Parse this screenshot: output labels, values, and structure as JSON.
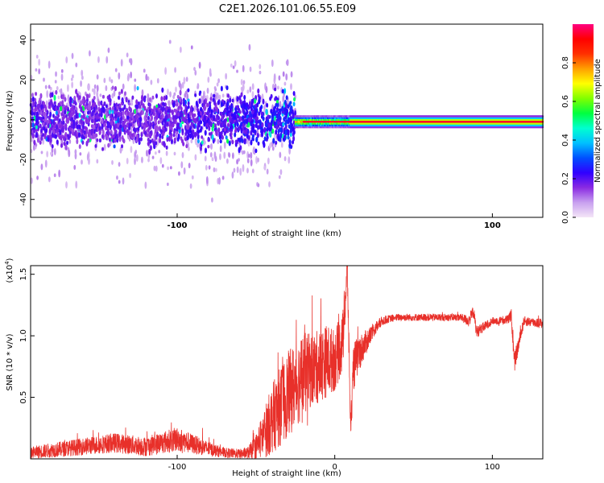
{
  "title": "C2E1.2026.101.06.55.E09",
  "chart_data": [
    {
      "type": "heatmap",
      "name": "spectrogram",
      "xlabel": "Height of straight line (km)",
      "ylabel": "Frequency (Hz)",
      "xlim": [
        -193,
        132
      ],
      "ylim": [
        -49,
        48
      ],
      "xticks": [
        -100,
        0,
        100
      ],
      "xtick_labels": [
        "-100",
        "",
        "100"
      ],
      "yticks": [
        -40,
        -20,
        0,
        20,
        40
      ],
      "ytick_labels": [
        "-40",
        "-20",
        "0",
        "20",
        "40"
      ],
      "colorbar": {
        "label": "Normalized spectral amplitude",
        "range": [
          0,
          1
        ],
        "ticks": [
          0,
          0.2,
          0.4,
          0.6,
          0.8
        ],
        "tick_labels": [
          "0.0",
          "0.2",
          "0.4",
          "0.6",
          "0.8"
        ],
        "colors": [
          "#f4e6f7",
          "#c8a0ef",
          "#8a2be2",
          "#3000ff",
          "#0050ff",
          "#00c0ff",
          "#00ffd0",
          "#00ff40",
          "#80ff00",
          "#ffff00",
          "#ffa000",
          "#ff3000",
          "#ff0000",
          "#ff0080"
        ]
      },
      "signal": {
        "broad_region_x": [
          -193,
          -25
        ],
        "broad_center_freq": 0,
        "broad_spread_hz": 12,
        "narrow_region_x": [
          -25,
          132
        ],
        "narrow_center_freq": -1,
        "narrow_halfwidth_hz": 2.5,
        "peak_amplitude_x": [
          -20,
          132
        ]
      }
    },
    {
      "type": "line",
      "name": "snr",
      "xlabel": "Height of straight line (km)",
      "ylabel": "SNR (10 * v/v)",
      "multiplier_label": "(x10",
      "multiplier_exp": "4",
      "xlim": [
        -193,
        132
      ],
      "ylim": [
        0,
        1.57
      ],
      "xticks": [
        -100,
        0,
        100
      ],
      "xtick_labels": [
        "-100",
        "0",
        "100"
      ],
      "yticks": [
        0.5,
        1.0,
        1.5
      ],
      "ytick_labels": [
        "0.5",
        "1.0",
        "1.5"
      ],
      "color": "#e8302a",
      "x": [
        -193,
        -180,
        -160,
        -140,
        -120,
        -100,
        -90,
        -80,
        -70,
        -60,
        -55,
        -50,
        -45,
        -40,
        -35,
        -30,
        -25,
        -20,
        -15,
        -10,
        -5,
        0,
        5,
        8,
        10,
        12,
        15,
        20,
        25,
        30,
        35,
        40,
        50,
        60,
        70,
        80,
        85,
        88,
        90,
        100,
        110,
        112,
        114,
        120,
        132
      ],
      "y": [
        0.05,
        0.07,
        0.1,
        0.13,
        0.1,
        0.16,
        0.12,
        0.08,
        0.05,
        0.04,
        0.05,
        0.1,
        0.2,
        0.32,
        0.42,
        0.52,
        0.6,
        0.68,
        0.72,
        0.75,
        0.8,
        0.8,
        0.95,
        1.55,
        0.25,
        0.75,
        0.85,
        0.95,
        1.05,
        1.12,
        1.14,
        1.15,
        1.15,
        1.15,
        1.15,
        1.15,
        1.12,
        1.2,
        1.03,
        1.12,
        1.13,
        1.17,
        0.78,
        1.12,
        1.1
      ],
      "noise_amplitude": [
        0.05,
        0.06,
        0.07,
        0.08,
        0.08,
        0.1,
        0.08,
        0.06,
        0.04,
        0.04,
        0.05,
        0.1,
        0.2,
        0.28,
        0.32,
        0.35,
        0.35,
        0.35,
        0.3,
        0.3,
        0.3,
        0.25,
        0.25,
        0.15,
        0.1,
        0.2,
        0.15,
        0.1,
        0.06,
        0.04,
        0.03,
        0.03,
        0.03,
        0.03,
        0.03,
        0.03,
        0.05,
        0.05,
        0.05,
        0.03,
        0.04,
        0.05,
        0.08,
        0.04,
        0.04
      ]
    }
  ]
}
